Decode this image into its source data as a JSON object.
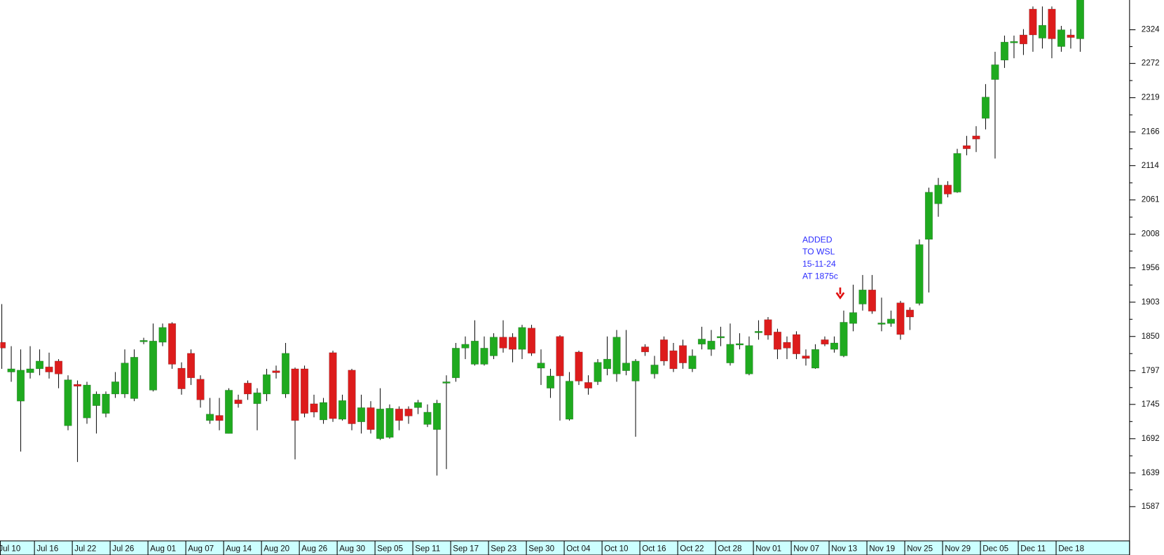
{
  "chart_data": {
    "type": "candlestick",
    "categories": [
      "Jul 10",
      null,
      null,
      null,
      "Jul 16",
      null,
      null,
      null,
      "Jul 22",
      null,
      null,
      null,
      "Jul 26",
      null,
      null,
      null,
      "Aug 01",
      null,
      null,
      null,
      "Aug 07",
      null,
      null,
      null,
      "Aug 14",
      null,
      null,
      null,
      "Aug 20",
      null,
      null,
      null,
      "Aug 26",
      null,
      null,
      null,
      "Aug 30",
      null,
      null,
      null,
      "Sep 05",
      null,
      null,
      null,
      "Sep 11",
      null,
      null,
      null,
      "Sep 17",
      null,
      null,
      null,
      "Sep 23",
      null,
      null,
      null,
      "Sep 30",
      null,
      null,
      null,
      "Oct 04",
      null,
      null,
      null,
      "Oct 10",
      null,
      null,
      null,
      "Oct 16",
      null,
      null,
      null,
      "Oct 22",
      null,
      null,
      null,
      "Oct 28",
      null,
      null,
      null,
      "Nov 01",
      null,
      null,
      null,
      "Nov 07",
      null,
      null,
      null,
      "Nov 13",
      null,
      null,
      null,
      "Nov 19",
      null,
      null,
      null,
      "Nov 25",
      null,
      null,
      null,
      "Nov 29",
      null,
      null,
      null,
      "Dec 05",
      null,
      null,
      null,
      "Dec 11",
      null,
      null,
      null,
      "Dec 18",
      null,
      null
    ],
    "open": [
      1841,
      1795,
      1750,
      1794,
      1800,
      1803,
      1812,
      1712,
      1776,
      1724,
      1743,
      1731,
      1761,
      1761,
      1754,
      1842,
      1767,
      1841,
      1870,
      1801,
      1824,
      1784,
      1720,
      1728,
      1700,
      1752,
      1778,
      1746,
      1761,
      1797,
      1761,
      1800,
      1800,
      1746,
      1721,
      1825,
      1722,
      1798,
      1718,
      1740,
      1692,
      1694,
      1738,
      1738,
      1740,
      1714,
      1706,
      1778,
      1786,
      1832,
      1807,
      1807,
      1820,
      1849,
      1849,
      1830,
      1863,
      1801,
      1770,
      1850,
      1722,
      1826,
      1779,
      1780,
      1800,
      1792,
      1797,
      1781,
      1834,
      1792,
      1845,
      1828,
      1836,
      1800,
      1838,
      1830,
      1848,
      1809,
      1837,
      1792,
      1856,
      1876,
      1857,
      1841,
      1853,
      1820,
      1801,
      1845,
      1830,
      1820,
      1870,
      1900,
      1922,
      1869,
      1870,
      1902,
      1891,
      1901,
      2000,
      2055,
      2084,
      2073,
      2145,
      2160,
      2187,
      2247,
      2277,
      2304,
      2316,
      2356,
      2311,
      2356,
      2298,
      2316,
      2310
    ],
    "high": [
      1900,
      1835,
      1830,
      1835,
      1830,
      1825,
      1815,
      1790,
      1782,
      1780,
      1765,
      1765,
      1795,
      1830,
      1830,
      1848,
      1870,
      1870,
      1872,
      1810,
      1830,
      1790,
      1755,
      1755,
      1770,
      1760,
      1782,
      1770,
      1800,
      1805,
      1840,
      1802,
      1805,
      1760,
      1755,
      1828,
      1760,
      1800,
      1760,
      1750,
      1770,
      1745,
      1742,
      1742,
      1752,
      1745,
      1752,
      1790,
      1840,
      1850,
      1875,
      1850,
      1855,
      1875,
      1855,
      1868,
      1868,
      1830,
      1800,
      1852,
      1795,
      1828,
      1790,
      1815,
      1850,
      1860,
      1860,
      1815,
      1838,
      1820,
      1850,
      1840,
      1845,
      1830,
      1865,
      1860,
      1865,
      1870,
      1855,
      1850,
      1875,
      1880,
      1862,
      1850,
      1858,
      1830,
      1838,
      1850,
      1850,
      1890,
      1930,
      1945,
      1945,
      1910,
      1890,
      1905,
      1895,
      2000,
      2080,
      2095,
      2090,
      2140,
      2160,
      2175,
      2240,
      2290,
      2315,
      2315,
      2325,
      2360,
      2360,
      2360,
      2330,
      2325,
      2390
    ],
    "low": [
      1800,
      1780,
      1672,
      1785,
      1790,
      1785,
      1770,
      1705,
      1656,
      1715,
      1700,
      1725,
      1755,
      1755,
      1750,
      1838,
      1765,
      1835,
      1800,
      1760,
      1775,
      1740,
      1715,
      1705,
      1700,
      1740,
      1752,
      1705,
      1750,
      1785,
      1755,
      1660,
      1725,
      1725,
      1715,
      1718,
      1720,
      1705,
      1700,
      1700,
      1690,
      1692,
      1705,
      1715,
      1730,
      1710,
      1635,
      1645,
      1780,
      1815,
      1805,
      1805,
      1815,
      1825,
      1810,
      1815,
      1820,
      1775,
      1755,
      1720,
      1720,
      1775,
      1760,
      1775,
      1790,
      1780,
      1790,
      1695,
      1820,
      1785,
      1805,
      1795,
      1800,
      1795,
      1830,
      1820,
      1835,
      1805,
      1830,
      1790,
      1845,
      1845,
      1815,
      1815,
      1815,
      1805,
      1800,
      1835,
      1825,
      1818,
      1858,
      1890,
      1885,
      1858,
      1865,
      1845,
      1860,
      1898,
      1918,
      2035,
      2065,
      2072,
      2130,
      2135,
      2170,
      2125,
      2265,
      2280,
      2285,
      2290,
      2295,
      2280,
      2290,
      2295,
      2290
    ],
    "close": [
      1832,
      1800,
      1798,
      1800,
      1812,
      1795,
      1792,
      1783,
      1773,
      1775,
      1761,
      1761,
      1780,
      1809,
      1818,
      1844,
      1843,
      1864,
      1807,
      1769,
      1786,
      1752,
      1730,
      1720,
      1767,
      1746,
      1761,
      1763,
      1791,
      1794,
      1824,
      1720,
      1731,
      1733,
      1748,
      1723,
      1751,
      1715,
      1740,
      1706,
      1738,
      1739,
      1720,
      1727,
      1748,
      1733,
      1747,
      1780,
      1832,
      1838,
      1843,
      1832,
      1849,
      1832,
      1830,
      1864,
      1824,
      1809,
      1789,
      1789,
      1781,
      1781,
      1770,
      1810,
      1815,
      1849,
      1809,
      1812,
      1826,
      1806,
      1812,
      1800,
      1809,
      1820,
      1846,
      1843,
      1850,
      1838,
      1839,
      1836,
      1858,
      1852,
      1830,
      1832,
      1823,
      1816,
      1830,
      1838,
      1840,
      1872,
      1887,
      1922,
      1889,
      1871,
      1877,
      1853,
      1880,
      1992,
      2073,
      2084,
      2070,
      2133,
      2140,
      2155,
      2220,
      2270,
      2305,
      2306,
      2302,
      2316,
      2331,
      2310,
      2324,
      2312,
      2380
    ],
    "up_color": "#1faa1f",
    "down_color": "#dd1c1c",
    "ylim": [
      1534,
      2370
    ],
    "yticks": [
      1587,
      1639,
      1692,
      1745,
      1797,
      1850,
      1903,
      1956,
      2008,
      2061,
      2114,
      2166,
      2219,
      2272,
      2324
    ],
    "annotation": {
      "lines": [
        "ADDED",
        "TO WSL",
        "15-11-24",
        "AT 1875c"
      ],
      "color": "#2f2fff"
    }
  }
}
